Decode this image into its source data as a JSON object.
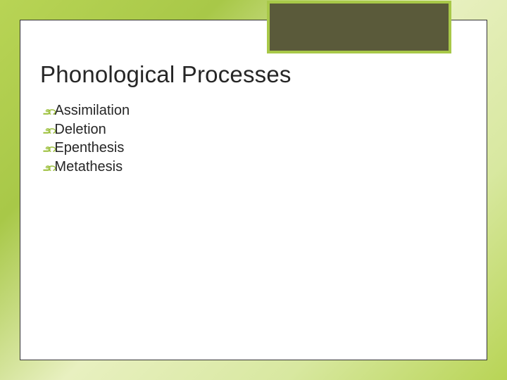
{
  "slide": {
    "title": "Phonological Processes",
    "bullets": [
      {
        "label": "Assimilation"
      },
      {
        "label": "Deletion"
      },
      {
        "label": "Epenthesis"
      },
      {
        "label": "Metathesis"
      }
    ]
  },
  "styling": {
    "background_gradient": [
      "#b8d455",
      "#a8c848",
      "#e8f0c0",
      "#d8e8a0",
      "#b8d455"
    ],
    "card_bg": "#ffffff",
    "card_border": "#333333",
    "deco_box_bg": "#5a5a3a",
    "deco_box_border": "#a8c848",
    "title_color": "#262626",
    "title_fontsize": 33,
    "bullet_text_color": "#262626",
    "bullet_fontsize": 20,
    "bullet_icon_color": "#9bbf3a",
    "bullet_icon_glyph": "೨೧"
  }
}
